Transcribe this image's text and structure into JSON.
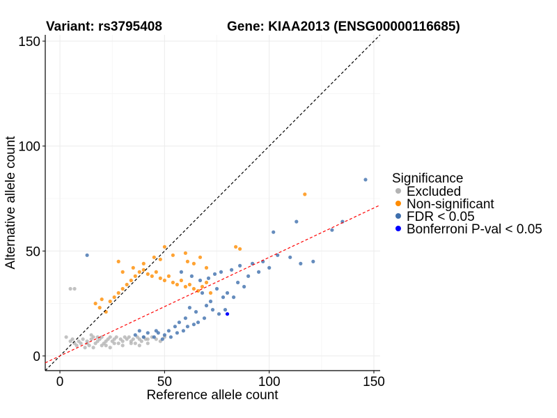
{
  "chart_data": {
    "type": "scatter",
    "title_left": "Variant: rs3795408",
    "title_right": "Gene: KIAA2013 (ENSG00000116685)",
    "xlabel": "Reference allele count",
    "ylabel": "Alternative allele count",
    "xlim": [
      -7,
      153
    ],
    "ylim": [
      -7,
      153
    ],
    "x_ticks": [
      0,
      50,
      100,
      150
    ],
    "y_ticks": [
      0,
      50,
      100,
      150
    ],
    "grid": true,
    "legend": {
      "title": "Significance",
      "placement": "right"
    },
    "reference_lines": [
      {
        "style": "dashed",
        "color": "#000000",
        "slope": 1,
        "intercept": 0
      },
      {
        "style": "dashed",
        "color": "#ff0000",
        "slope": 0.47,
        "intercept": 0
      }
    ],
    "series": [
      {
        "name": "Excluded",
        "color": "#b3b3b3",
        "points": [
          [
            5,
            32
          ],
          [
            7,
            32
          ],
          [
            3,
            9
          ],
          [
            5,
            7
          ],
          [
            6,
            8
          ],
          [
            7,
            6
          ],
          [
            8,
            5
          ],
          [
            9,
            7
          ],
          [
            10,
            6
          ],
          [
            11,
            8
          ],
          [
            12,
            4
          ],
          [
            13,
            7
          ],
          [
            14,
            5
          ],
          [
            15,
            8
          ],
          [
            16,
            9
          ],
          [
            17,
            6
          ],
          [
            18,
            7
          ],
          [
            19,
            8
          ],
          [
            20,
            9
          ],
          [
            21,
            6
          ],
          [
            22,
            7
          ],
          [
            23,
            8
          ],
          [
            24,
            9
          ],
          [
            25,
            7
          ],
          [
            26,
            8
          ],
          [
            27,
            9
          ],
          [
            28,
            6
          ],
          [
            29,
            8
          ],
          [
            30,
            7
          ],
          [
            31,
            9
          ],
          [
            32,
            8
          ],
          [
            33,
            9
          ],
          [
            34,
            7
          ],
          [
            35,
            8
          ],
          [
            36,
            6
          ],
          [
            37,
            9
          ],
          [
            38,
            8
          ],
          [
            39,
            7
          ],
          [
            40,
            9
          ],
          [
            41,
            8
          ],
          [
            42,
            6
          ],
          [
            44,
            9
          ],
          [
            46,
            8
          ],
          [
            48,
            7
          ],
          [
            50,
            9
          ],
          [
            13,
            6
          ],
          [
            15,
            10
          ],
          [
            18,
            9
          ],
          [
            22,
            5
          ],
          [
            26,
            6
          ],
          [
            30,
            5
          ],
          [
            34,
            6
          ],
          [
            38,
            5
          ],
          [
            42,
            8
          ],
          [
            16,
            4
          ],
          [
            20,
            5
          ],
          [
            24,
            4
          ]
        ]
      },
      {
        "name": "Non-significant",
        "color": "#ff8c00",
        "points": [
          [
            117,
            77
          ],
          [
            61,
            45
          ],
          [
            84,
            52
          ],
          [
            86,
            51
          ],
          [
            50,
            52
          ],
          [
            60,
            49
          ],
          [
            28,
            45
          ],
          [
            48,
            46
          ],
          [
            30,
            40
          ],
          [
            40,
            44
          ],
          [
            67,
            47
          ],
          [
            54,
            48
          ],
          [
            35,
            42
          ],
          [
            45,
            47
          ],
          [
            64,
            44
          ],
          [
            70,
            42
          ],
          [
            20,
            27
          ],
          [
            17,
            25
          ],
          [
            19,
            23
          ],
          [
            22,
            21
          ],
          [
            24,
            26
          ],
          [
            26,
            28
          ],
          [
            28,
            30
          ],
          [
            30,
            32
          ],
          [
            32,
            34
          ],
          [
            34,
            36
          ],
          [
            36,
            38
          ],
          [
            38,
            40
          ],
          [
            40,
            41
          ],
          [
            42,
            39
          ],
          [
            44,
            38
          ],
          [
            46,
            40
          ],
          [
            48,
            37
          ],
          [
            50,
            36
          ],
          [
            52,
            38
          ],
          [
            54,
            35
          ],
          [
            56,
            34
          ],
          [
            58,
            36
          ],
          [
            60,
            33
          ],
          [
            62,
            34
          ],
          [
            64,
            32
          ],
          [
            66,
            31
          ],
          [
            68,
            33
          ],
          [
            70,
            35
          ],
          [
            72,
            30
          ]
        ]
      },
      {
        "name": "FDR < 0.05",
        "color": "#3e6fad",
        "points": [
          [
            146,
            84
          ],
          [
            113,
            64
          ],
          [
            135,
            64
          ],
          [
            130,
            60
          ],
          [
            102,
            59
          ],
          [
            121,
            45
          ],
          [
            13,
            48
          ],
          [
            110,
            47
          ],
          [
            115,
            44
          ],
          [
            104,
            48
          ],
          [
            100,
            42
          ],
          [
            95,
            40
          ],
          [
            90,
            38
          ],
          [
            85,
            35
          ],
          [
            80,
            30
          ],
          [
            78,
            28
          ],
          [
            75,
            32
          ],
          [
            72,
            26
          ],
          [
            70,
            24
          ],
          [
            68,
            30
          ],
          [
            65,
            21
          ],
          [
            62,
            23
          ],
          [
            60,
            18
          ],
          [
            57,
            16
          ],
          [
            55,
            14
          ],
          [
            52,
            12
          ],
          [
            50,
            10
          ],
          [
            47,
            11
          ],
          [
            45,
            9
          ],
          [
            42,
            11
          ],
          [
            40,
            9
          ],
          [
            38,
            12
          ],
          [
            36,
            10
          ],
          [
            58,
            40
          ],
          [
            63,
            38
          ],
          [
            67,
            36
          ],
          [
            71,
            37
          ],
          [
            74,
            39
          ],
          [
            77,
            40
          ],
          [
            82,
            41
          ],
          [
            86,
            43
          ],
          [
            92,
            44
          ],
          [
            97,
            45
          ],
          [
            88,
            33
          ],
          [
            83,
            28
          ],
          [
            79,
            22
          ],
          [
            76,
            20
          ],
          [
            73,
            22
          ],
          [
            69,
            18
          ],
          [
            66,
            16
          ],
          [
            64,
            15
          ],
          [
            61,
            14
          ],
          [
            59,
            12
          ],
          [
            56,
            11
          ],
          [
            53,
            9
          ],
          [
            49,
            8
          ],
          [
            46,
            12
          ]
        ]
      },
      {
        "name": "Bonferroni P-val < 0.05",
        "color": "#0000ff",
        "points": [
          [
            80,
            20
          ]
        ]
      }
    ]
  }
}
